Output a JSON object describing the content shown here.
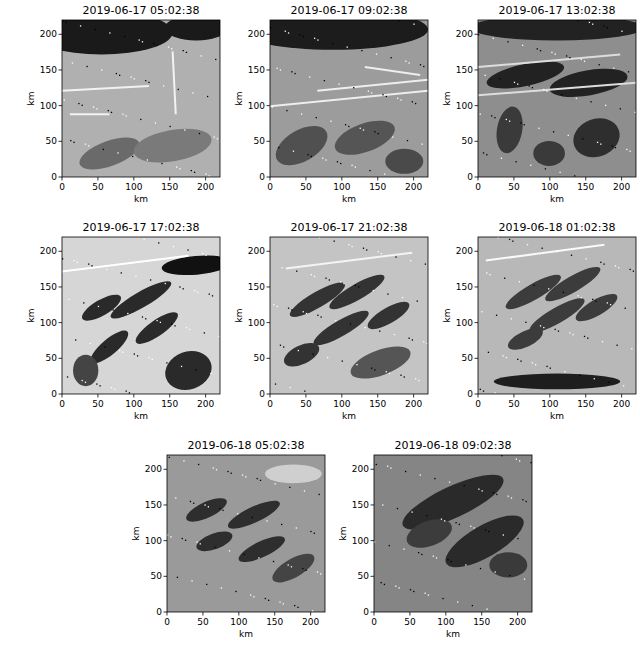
{
  "chart_data": [
    {
      "type": "image",
      "title": "2019-06-17 05:02:38",
      "xlabel": "km",
      "ylabel": "km",
      "xlim": [
        0,
        220
      ],
      "ylim": [
        0,
        220
      ],
      "xticks": [
        0,
        50,
        100,
        150,
        200
      ],
      "yticks": [
        0,
        50,
        100,
        150,
        200
      ]
    },
    {
      "type": "image",
      "title": "2019-06-17 09:02:38",
      "xlabel": "km",
      "ylabel": "km",
      "xlim": [
        0,
        220
      ],
      "ylim": [
        0,
        220
      ],
      "xticks": [
        0,
        50,
        100,
        150,
        200
      ],
      "yticks": [
        0,
        50,
        100,
        150,
        200
      ]
    },
    {
      "type": "image",
      "title": "2019-06-17 13:02:38",
      "xlabel": "km",
      "ylabel": "km",
      "xlim": [
        0,
        220
      ],
      "ylim": [
        0,
        220
      ],
      "xticks": [
        0,
        50,
        100,
        150,
        200
      ],
      "yticks": [
        0,
        50,
        100,
        150,
        200
      ]
    },
    {
      "type": "image",
      "title": "2019-06-17 17:02:38",
      "xlabel": "km",
      "ylabel": "km",
      "xlim": [
        0,
        220
      ],
      "ylim": [
        0,
        220
      ],
      "xticks": [
        0,
        50,
        100,
        150,
        200
      ],
      "yticks": [
        0,
        50,
        100,
        150,
        200
      ]
    },
    {
      "type": "image",
      "title": "2019-06-17 21:02:38",
      "xlabel": "km",
      "ylabel": "km",
      "xlim": [
        0,
        220
      ],
      "ylim": [
        0,
        220
      ],
      "xticks": [
        0,
        50,
        100,
        150,
        200
      ],
      "yticks": [
        0,
        50,
        100,
        150,
        200
      ]
    },
    {
      "type": "image",
      "title": "2019-06-18 01:02:38",
      "xlabel": "km",
      "ylabel": "km",
      "xlim": [
        0,
        220
      ],
      "ylim": [
        0,
        220
      ],
      "xticks": [
        0,
        50,
        100,
        150,
        200
      ],
      "yticks": [
        0,
        50,
        100,
        150,
        200
      ]
    },
    {
      "type": "image",
      "title": "2019-06-18 05:02:38",
      "xlabel": "km",
      "ylabel": "km",
      "xlim": [
        0,
        220
      ],
      "ylim": [
        0,
        220
      ],
      "xticks": [
        0,
        50,
        100,
        150,
        200
      ],
      "yticks": [
        0,
        50,
        100,
        150,
        200
      ]
    },
    {
      "type": "image",
      "title": "2019-06-18 09:02:38",
      "xlabel": "km",
      "ylabel": "km",
      "xlim": [
        0,
        220
      ],
      "ylim": [
        0,
        220
      ],
      "xticks": [
        0,
        50,
        100,
        150,
        200
      ],
      "yticks": [
        0,
        50,
        100,
        150,
        200
      ]
    }
  ]
}
